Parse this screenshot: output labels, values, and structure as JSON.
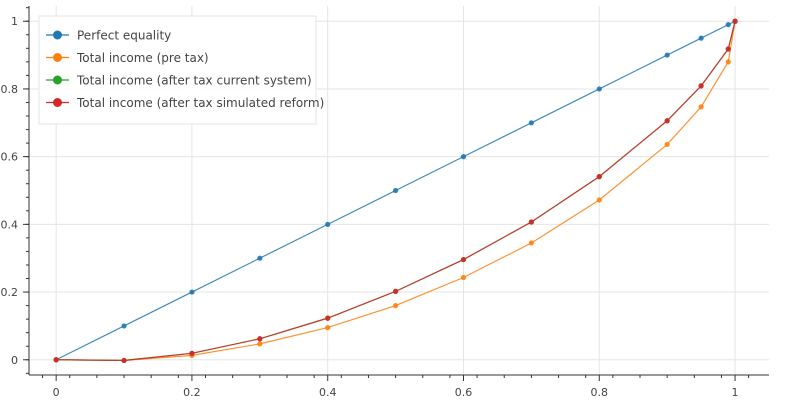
{
  "chart_data": {
    "type": "line",
    "title": "",
    "xlabel": "",
    "ylabel": "",
    "xlim": [
      -0.04,
      1.05
    ],
    "ylim": [
      -0.045,
      1.045
    ],
    "grid": true,
    "legend_position": "top-left",
    "x_ticks": [
      0,
      0.2,
      0.4,
      0.6,
      0.8,
      1
    ],
    "x_tick_labels": [
      "0",
      "0.2",
      "0.4",
      "0.6",
      "0.8",
      "1"
    ],
    "y_ticks": [
      0,
      0.2,
      0.4,
      0.6,
      0.8,
      1
    ],
    "y_tick_labels": [
      "0",
      "0.2",
      "0.4",
      "0.6",
      "0.8",
      "1"
    ],
    "x": [
      0,
      0.1,
      0.2,
      0.3,
      0.4,
      0.5,
      0.6,
      0.7,
      0.8,
      0.9,
      0.95,
      0.99,
      1
    ],
    "series": [
      {
        "name": "Perfect equality",
        "color": "#1f77b4",
        "values": [
          0,
          0.1,
          0.2,
          0.3,
          0.4,
          0.5,
          0.6,
          0.7,
          0.8,
          0.9,
          0.95,
          0.99,
          1
        ]
      },
      {
        "name": "Total income (pre tax)",
        "color": "#ff7f0e",
        "values": [
          0,
          -0.002,
          0.013,
          0.047,
          0.095,
          0.16,
          0.243,
          0.345,
          0.472,
          0.636,
          0.747,
          0.88,
          1
        ]
      },
      {
        "name": "Total income (after tax current system)",
        "color": "#2ca02c",
        "values": [
          0,
          -0.002,
          0.019,
          0.062,
          0.123,
          0.202,
          0.296,
          0.407,
          0.541,
          0.706,
          0.809,
          0.918,
          1
        ]
      },
      {
        "name": "Total income (after tax simulated reform)",
        "color": "#d62728",
        "values": [
          0,
          -0.002,
          0.019,
          0.062,
          0.123,
          0.202,
          0.296,
          0.407,
          0.541,
          0.706,
          0.809,
          0.918,
          1
        ]
      }
    ]
  }
}
